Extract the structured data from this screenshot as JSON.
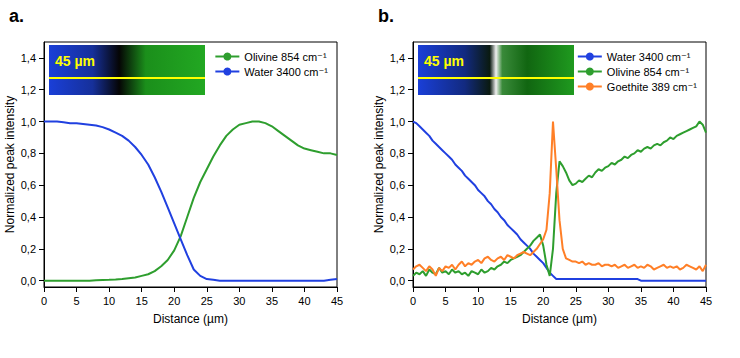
{
  "chart_data": [
    {
      "type": "line",
      "title": "a.",
      "x_label": "Distance (µm)",
      "y_label": "Normalized peak intensity",
      "annotations": [
        "45 µm"
      ],
      "x": [
        0,
        1,
        2,
        3,
        4,
        5,
        6,
        7,
        8,
        9,
        10,
        11,
        12,
        13,
        14,
        15,
        16,
        17,
        18,
        19,
        20,
        21,
        22,
        23,
        24,
        25,
        26,
        27,
        28,
        29,
        30,
        31,
        32,
        33,
        34,
        35,
        36,
        37,
        38,
        39,
        40,
        41,
        42,
        43,
        44,
        45
      ],
      "series": [
        {
          "name": "Olivine 854 cm⁻¹",
          "color": "#2e9e2e",
          "values": [
            0,
            0,
            0,
            0,
            0,
            0,
            0,
            0,
            0.002,
            0.004,
            0.005,
            0.007,
            0.01,
            0.015,
            0.02,
            0.03,
            0.04,
            0.06,
            0.09,
            0.13,
            0.19,
            0.28,
            0.4,
            0.52,
            0.62,
            0.7,
            0.78,
            0.85,
            0.91,
            0.95,
            0.98,
            0.99,
            1.0,
            1.0,
            0.99,
            0.97,
            0.94,
            0.91,
            0.88,
            0.85,
            0.83,
            0.82,
            0.81,
            0.8,
            0.8,
            0.79
          ]
        },
        {
          "name": "Water 3400 cm⁻¹",
          "color": "#2040e0",
          "values": [
            1.0,
            1.0,
            1.0,
            0.995,
            0.99,
            0.99,
            0.985,
            0.98,
            0.975,
            0.965,
            0.95,
            0.93,
            0.91,
            0.88,
            0.84,
            0.79,
            0.73,
            0.65,
            0.56,
            0.46,
            0.36,
            0.26,
            0.16,
            0.07,
            0.03,
            0.01,
            0.005,
            0,
            0,
            0,
            0,
            0,
            0,
            0,
            0,
            0,
            0,
            0,
            0,
            0,
            0,
            0,
            0,
            0,
            0.005,
            0.01
          ]
        }
      ],
      "xlim": [
        0,
        45
      ],
      "xticks": [
        0,
        5,
        10,
        15,
        20,
        25,
        30,
        35,
        40,
        45
      ],
      "ylim": [
        -0.04,
        1.5
      ],
      "yticks": [
        {
          "value": 0,
          "label": "0,0"
        },
        {
          "value": 0.2,
          "label": "0,2"
        },
        {
          "value": 0.4,
          "label": "0,4"
        },
        {
          "value": 0.6,
          "label": "0,6"
        },
        {
          "value": 0.8,
          "label": "0,8"
        },
        {
          "value": 1.0,
          "label": "1,0"
        },
        {
          "value": 1.2,
          "label": "1,2"
        },
        {
          "value": 1.4,
          "label": "1,4"
        }
      ],
      "grid": false,
      "legend": "upper right"
    },
    {
      "type": "line",
      "title": "b.",
      "x_label": "Distance (µm)",
      "y_label": "Normalized peak intensity",
      "annotations": [
        "45 µm"
      ],
      "x": [
        0,
        0.5,
        1,
        1.5,
        2,
        2.5,
        3,
        3.5,
        4,
        4.5,
        5,
        5.5,
        6,
        6.5,
        7,
        7.5,
        8,
        8.5,
        9,
        9.5,
        10,
        10.5,
        11,
        11.5,
        12,
        12.5,
        13,
        13.5,
        14,
        14.5,
        15,
        15.5,
        16,
        16.5,
        17,
        17.5,
        18,
        18.5,
        19,
        19.5,
        20,
        20.5,
        21,
        21.5,
        22,
        22.5,
        23,
        23.5,
        24,
        24.5,
        25,
        25.5,
        26,
        26.5,
        27,
        27.5,
        28,
        28.5,
        29,
        29.5,
        30,
        30.5,
        31,
        31.5,
        32,
        32.5,
        33,
        33.5,
        34,
        34.5,
        35,
        35.5,
        36,
        36.5,
        37,
        37.5,
        38,
        38.5,
        39,
        39.5,
        40,
        40.5,
        41,
        41.5,
        42,
        42.5,
        43,
        43.5,
        44,
        44.5,
        45
      ],
      "series": [
        {
          "name": "Water 3400 cm⁻¹",
          "color": "#2040e0",
          "values": [
            1.0,
            0.99,
            0.97,
            0.95,
            0.93,
            0.91,
            0.88,
            0.86,
            0.84,
            0.82,
            0.8,
            0.78,
            0.76,
            0.73,
            0.71,
            0.69,
            0.66,
            0.64,
            0.62,
            0.6,
            0.57,
            0.55,
            0.53,
            0.5,
            0.48,
            0.45,
            0.43,
            0.4,
            0.38,
            0.35,
            0.33,
            0.31,
            0.29,
            0.26,
            0.24,
            0.22,
            0.2,
            0.17,
            0.15,
            0.13,
            0.11,
            0.08,
            0.05,
            0.03,
            0.01,
            0.01,
            0.01,
            0.01,
            0.01,
            0.01,
            0.01,
            0.01,
            0.01,
            0.01,
            0.01,
            0.01,
            0.01,
            0.01,
            0.01,
            0.01,
            0.01,
            0.01,
            0.01,
            0.01,
            0.01,
            0.01,
            0.01,
            0.01,
            0.01,
            0.01,
            0,
            0,
            0,
            0,
            0,
            0,
            0,
            0,
            0,
            0,
            0,
            0,
            0,
            0,
            0,
            0,
            0,
            0,
            0,
            0,
            0
          ]
        },
        {
          "name": "Olivine 854 cm⁻¹",
          "color": "#2e9e2e",
          "values": [
            0.03,
            0.05,
            0.04,
            0.06,
            0.03,
            0.07,
            0.05,
            0.04,
            0.08,
            0.05,
            0.06,
            0.04,
            0.07,
            0.05,
            0.06,
            0.04,
            0.05,
            0.03,
            0.06,
            0.05,
            0.04,
            0.07,
            0.05,
            0.06,
            0.08,
            0.07,
            0.09,
            0.1,
            0.12,
            0.11,
            0.13,
            0.14,
            0.15,
            0.16,
            0.18,
            0.2,
            0.22,
            0.25,
            0.27,
            0.29,
            0.22,
            0.1,
            0.03,
            0.2,
            0.55,
            0.75,
            0.72,
            0.68,
            0.63,
            0.6,
            0.61,
            0.63,
            0.62,
            0.64,
            0.66,
            0.65,
            0.68,
            0.7,
            0.69,
            0.71,
            0.72,
            0.74,
            0.73,
            0.75,
            0.76,
            0.78,
            0.77,
            0.79,
            0.8,
            0.82,
            0.81,
            0.83,
            0.84,
            0.83,
            0.85,
            0.86,
            0.85,
            0.87,
            0.88,
            0.9,
            0.89,
            0.91,
            0.92,
            0.93,
            0.94,
            0.95,
            0.96,
            0.97,
            1.0,
            0.98,
            0.93
          ]
        },
        {
          "name": "Goethite 389 cm⁻¹",
          "color": "#ff7f27",
          "values": [
            0.07,
            0.09,
            0.1,
            0.08,
            0.06,
            0.09,
            0.07,
            0.03,
            0.08,
            0.06,
            0.09,
            0.08,
            0.1,
            0.07,
            0.1,
            0.12,
            0.09,
            0.11,
            0.1,
            0.12,
            0.13,
            0.11,
            0.14,
            0.15,
            0.13,
            0.12,
            0.14,
            0.15,
            0.13,
            0.16,
            0.15,
            0.14,
            0.16,
            0.17,
            0.18,
            0.17,
            0.16,
            0.18,
            0.2,
            0.23,
            0.26,
            0.32,
            0.55,
            1.0,
            0.7,
            0.38,
            0.2,
            0.14,
            0.13,
            0.12,
            0.12,
            0.11,
            0.12,
            0.1,
            0.11,
            0.1,
            0.1,
            0.11,
            0.09,
            0.1,
            0.1,
            0.09,
            0.1,
            0.08,
            0.09,
            0.1,
            0.08,
            0.09,
            0.1,
            0.08,
            0.09,
            0.08,
            0.1,
            0.09,
            0.07,
            0.08,
            0.09,
            0.1,
            0.08,
            0.09,
            0.08,
            0.09,
            0.07,
            0.08,
            0.1,
            0.09,
            0.08,
            0.07,
            0.09,
            0.06,
            0.1
          ]
        }
      ],
      "xlim": [
        0,
        45
      ],
      "xticks": [
        0,
        5,
        10,
        15,
        20,
        25,
        30,
        35,
        40,
        45
      ],
      "ylim": [
        -0.04,
        1.5
      ],
      "yticks": [
        {
          "value": 0,
          "label": "0,0"
        },
        {
          "value": 0.2,
          "label": "0,2"
        },
        {
          "value": 0.4,
          "label": "0,4"
        },
        {
          "value": 0.6,
          "label": "0,6"
        },
        {
          "value": 0.8,
          "label": "0,8"
        },
        {
          "value": 1.0,
          "label": "1,0"
        },
        {
          "value": 1.2,
          "label": "1,2"
        },
        {
          "value": 1.4,
          "label": "1,4"
        }
      ],
      "grid": false,
      "legend": "upper right"
    }
  ]
}
